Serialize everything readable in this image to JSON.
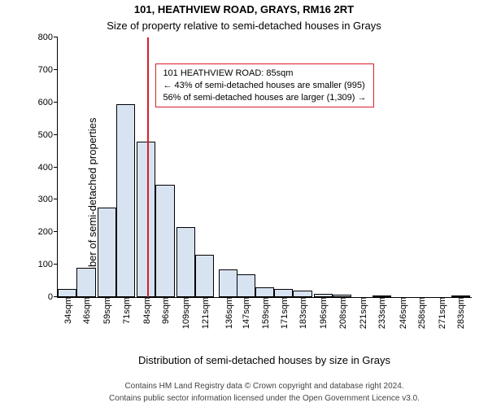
{
  "header": {
    "title": "101, HEATHVIEW ROAD, GRAYS, RM16 2RT",
    "subtitle": "Size of property relative to semi-detached houses in Grays"
  },
  "axes": {
    "ylabel": "Number of semi-detached properties",
    "xlabel": "Distribution of semi-detached houses by size in Grays",
    "footer_line1": "Contains HM Land Registry data © Crown copyright and database right 2024.",
    "footer_line2": "Contains public sector information licensed under the Open Government Licence v3.0.",
    "ylabel_fontsize": 13,
    "xlabel_fontsize": 13,
    "footer_fontsize": 10,
    "title_fontsize": 13,
    "subtitle_fontsize": 13,
    "tick_fontsize": 11
  },
  "chart": {
    "type": "histogram",
    "ylim": [
      0,
      800
    ],
    "yticks": [
      0,
      100,
      200,
      300,
      400,
      500,
      600,
      700,
      800
    ],
    "xlim": [
      28,
      290
    ],
    "xticks": [
      34,
      46,
      59,
      71,
      84,
      96,
      109,
      121,
      136,
      147,
      159,
      171,
      183,
      196,
      208,
      221,
      233,
      246,
      258,
      271,
      283
    ],
    "xtick_suffix": "sqm",
    "categories": [
      34,
      46,
      59,
      71,
      84,
      96,
      109,
      121,
      136,
      147,
      159,
      171,
      183,
      196,
      208,
      221,
      233,
      246,
      258,
      271,
      283
    ],
    "values": [
      25,
      90,
      275,
      595,
      480,
      345,
      215,
      130,
      85,
      70,
      30,
      25,
      20,
      10,
      8,
      0,
      5,
      0,
      0,
      0,
      4
    ],
    "bar_width_units": 12,
    "bar_color": "#d8e3f2",
    "bar_border_color": "#000000",
    "bar_border_width": 0.5,
    "background_color": "#ffffff",
    "marker_line": {
      "x": 85,
      "color": "#d81e2c",
      "width": 2
    },
    "annotation": {
      "lines": [
        "101 HEATHVIEW ROAD: 85sqm",
        "← 43% of semi-detached houses are smaller (995)",
        "56% of semi-detached houses are larger (1,309) →"
      ],
      "border_color": "#d81e2c",
      "border_width": 1,
      "x_anchor": 90,
      "y_anchor": 720
    }
  }
}
